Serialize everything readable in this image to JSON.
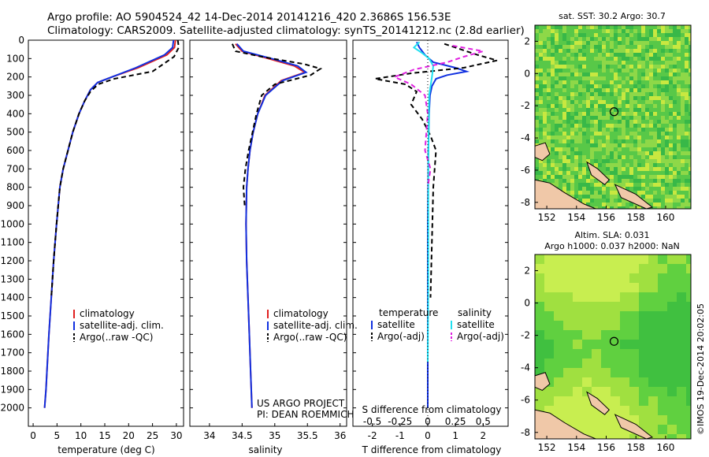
{
  "header": {
    "line1": "Argo profile: AO 5904524_42 14-Dec-2014 20141216_420 2.3686S 156.53E",
    "line2": "Climatology: CARS2009. Satellite-adjusted climatology: synTS_20141212.nc (2.8d earlier)"
  },
  "credit": "©IMOS 19-Dec-2014 20:02:05",
  "project": {
    "line1": "US ARGO PROJECT",
    "line2": "PI: DEAN ROEMMICH"
  },
  "colors": {
    "clim": "#e02020",
    "sat": "#1030e0",
    "argo": "#000000",
    "sat_s": "#20e0f0",
    "argo_s": "#e020e0"
  },
  "chart_data": [
    {
      "type": "line",
      "id": "temperature",
      "xlabel": "temperature (deg C)",
      "ylabel": "",
      "xlim": [
        -1,
        31.5
      ],
      "ylim": [
        2100,
        0
      ],
      "xticks": [
        0,
        5,
        10,
        15,
        20,
        25,
        30
      ],
      "yticks": [
        0,
        100,
        200,
        300,
        400,
        500,
        600,
        700,
        800,
        900,
        1000,
        1100,
        1200,
        1300,
        1400,
        1500,
        1600,
        1700,
        1800,
        1900,
        2000
      ],
      "legend": [
        "climatology",
        "satellite-adj. clim.",
        "Argo(..raw -QC)"
      ],
      "series": [
        {
          "name": "climatology",
          "color": "clim",
          "dash": "",
          "x": [
            29.8,
            29.6,
            28.0,
            22.0,
            16.5,
            13.5,
            12.0,
            10.8,
            9.6,
            8.3,
            7.3,
            6.3,
            5.6,
            4.9,
            4.3,
            3.8,
            3.3,
            2.9,
            2.7,
            2.4
          ],
          "y": [
            0,
            40,
            80,
            150,
            200,
            230,
            270,
            330,
            400,
            500,
            600,
            700,
            800,
            1000,
            1200,
            1400,
            1600,
            1800,
            1900,
            2000
          ]
        },
        {
          "name": "satellite-adj. clim.",
          "color": "sat",
          "dash": "",
          "x": [
            29.4,
            29.2,
            27.5,
            21.5,
            16.5,
            13.5,
            12.0,
            10.8,
            9.6,
            8.3,
            7.3,
            6.3,
            5.6,
            4.9,
            4.3,
            3.8,
            3.3,
            2.9,
            2.7,
            2.4
          ],
          "y": [
            0,
            40,
            80,
            150,
            200,
            230,
            270,
            330,
            400,
            500,
            600,
            700,
            800,
            1000,
            1200,
            1400,
            1600,
            1800,
            1900,
            2000
          ]
        },
        {
          "name": "Argo(..raw -QC)",
          "color": "argo",
          "dash": "6,4",
          "x": [
            30.3,
            30.5,
            29.5,
            25.0,
            17.0,
            13.6,
            12.0,
            10.8,
            9.6,
            8.3,
            7.3,
            6.3,
            5.6,
            4.9,
            4.3,
            3.8
          ],
          "y": [
            0,
            40,
            90,
            170,
            210,
            240,
            280,
            330,
            400,
            500,
            600,
            700,
            800,
            1000,
            1200,
            1400
          ]
        }
      ]
    },
    {
      "type": "line",
      "id": "salinity",
      "xlabel": "salinity",
      "ylabel": "",
      "xlim": [
        33.7,
        36.1
      ],
      "ylim": [
        2100,
        0
      ],
      "xticks": [
        34,
        34.5,
        35,
        35.5,
        36
      ],
      "xtick_labels": [
        "34",
        "34.5",
        "35",
        "35.5",
        "36"
      ],
      "legend": [
        "climatology",
        "satellite-adj. clim.",
        "Argo(..raw -QC)"
      ],
      "series": [
        {
          "name": "climatology",
          "color": "clim",
          "dash": "",
          "x": [
            34.4,
            34.5,
            34.9,
            35.3,
            35.46,
            35.1,
            34.85,
            34.74,
            34.67,
            34.62,
            34.59,
            34.57,
            34.56,
            34.57,
            34.59,
            34.61,
            34.63,
            34.65
          ],
          "y": [
            20,
            60,
            100,
            140,
            175,
            220,
            300,
            400,
            500,
            600,
            700,
            800,
            1000,
            1200,
            1400,
            1600,
            1800,
            2000
          ]
        },
        {
          "name": "satellite-adj. clim.",
          "color": "sat",
          "dash": "",
          "x": [
            34.42,
            34.52,
            34.95,
            35.35,
            35.48,
            35.12,
            34.86,
            34.74,
            34.67,
            34.62,
            34.59,
            34.57,
            34.56,
            34.57,
            34.59,
            34.61,
            34.63,
            34.65
          ],
          "y": [
            20,
            60,
            100,
            140,
            175,
            220,
            300,
            400,
            500,
            600,
            700,
            800,
            1000,
            1200,
            1400,
            1600,
            1800,
            2000
          ]
        },
        {
          "name": "Argo(..raw -QC)",
          "color": "argo",
          "dash": "6,4",
          "x": [
            34.35,
            34.4,
            34.8,
            35.45,
            35.7,
            35.55,
            35.0,
            34.8,
            34.72,
            34.66,
            34.6,
            34.55,
            34.52,
            34.54
          ],
          "y": [
            20,
            60,
            90,
            130,
            155,
            190,
            240,
            300,
            400,
            500,
            600,
            700,
            800,
            900
          ]
        }
      ]
    },
    {
      "type": "line",
      "id": "difference",
      "xlabel": "T difference from climatology",
      "xlabel_top": "S difference from climatology",
      "xlim": [
        -2.7,
        2.9
      ],
      "ylim": [
        2100,
        0
      ],
      "xticks": [
        -2,
        -1,
        0,
        1,
        2
      ],
      "xticks_top": [
        -0.5,
        -0.25,
        0,
        0.25,
        0.5
      ],
      "xtick_labels_top": [
        "-0.5",
        "-0.25",
        "0",
        "0.25",
        "0.5"
      ],
      "legend_temperature": {
        "title": "temperature",
        "items": [
          "satellite",
          "Argo(-adj)"
        ]
      },
      "legend_salinity": {
        "title": "salinity",
        "items": [
          "satellite",
          "Argo(-adj)"
        ]
      },
      "series": [
        {
          "name": "temperature satellite",
          "color": "sat",
          "dash": "",
          "x": [
            -0.4,
            -0.3,
            -0.1,
            0.2,
            1.0,
            1.4,
            0.7,
            0.3,
            0.15,
            0.08,
            0.05,
            0.02,
            0.0,
            0.0
          ],
          "y": [
            10,
            40,
            80,
            120,
            150,
            170,
            190,
            210,
            250,
            300,
            400,
            600,
            1000,
            2000
          ]
        },
        {
          "name": "temperature Argo(-adj)",
          "color": "argo",
          "dash": "6,4",
          "x": [
            0.6,
            1.2,
            1.8,
            2.5,
            1.3,
            -0.6,
            -1.9,
            -0.8,
            -0.4,
            -0.6,
            -0.2,
            0.1,
            0.3,
            0.2,
            0.1
          ],
          "y": [
            20,
            50,
            80,
            110,
            150,
            180,
            210,
            240,
            280,
            350,
            430,
            520,
            600,
            800,
            1400
          ]
        },
        {
          "name": "salinity satellite",
          "color": "sat_s",
          "dash": "",
          "x": [
            -0.3,
            -0.5,
            -0.2,
            0.05,
            0.2,
            0.15,
            0.05,
            0.02,
            0.02,
            0.0
          ],
          "y": [
            10,
            40,
            70,
            100,
            140,
            200,
            300,
            700,
            1300,
            1750
          ]
        },
        {
          "name": "salinity Argo(-adj)",
          "color": "argo_s",
          "dash": "6,4",
          "x": [
            0.9,
            2.0,
            1.3,
            0.7,
            -0.5,
            -1.2,
            -0.6,
            -0.1,
            0.0,
            -0.1,
            0.1,
            0.0
          ],
          "y": [
            30,
            60,
            90,
            120,
            160,
            200,
            240,
            300,
            400,
            600,
            700,
            800
          ]
        }
      ]
    },
    {
      "type": "heatmap",
      "id": "sst_map",
      "title": "sat. SST: 30.2  Argo: 30.7",
      "xlim": [
        151.2,
        161.7
      ],
      "ylim": [
        -8.4,
        3.0
      ],
      "xticks": [
        152,
        154,
        156,
        158,
        160
      ],
      "yticks": [
        2,
        0,
        -2,
        -4,
        -6,
        -8
      ],
      "marker": {
        "lon": 156.53,
        "lat": -2.37
      }
    },
    {
      "type": "heatmap",
      "id": "sla_map",
      "title_line1": "Altim. SLA: 0.031",
      "title_line2": "Argo h1000: 0.037 h2000: NaN",
      "xlim": [
        151.2,
        161.7
      ],
      "ylim": [
        -8.4,
        3.0
      ],
      "xticks": [
        152,
        154,
        156,
        158,
        160
      ],
      "yticks": [
        2,
        0,
        -2,
        -4,
        -6,
        -8
      ],
      "marker": {
        "lon": 156.53,
        "lat": -2.37
      }
    }
  ]
}
